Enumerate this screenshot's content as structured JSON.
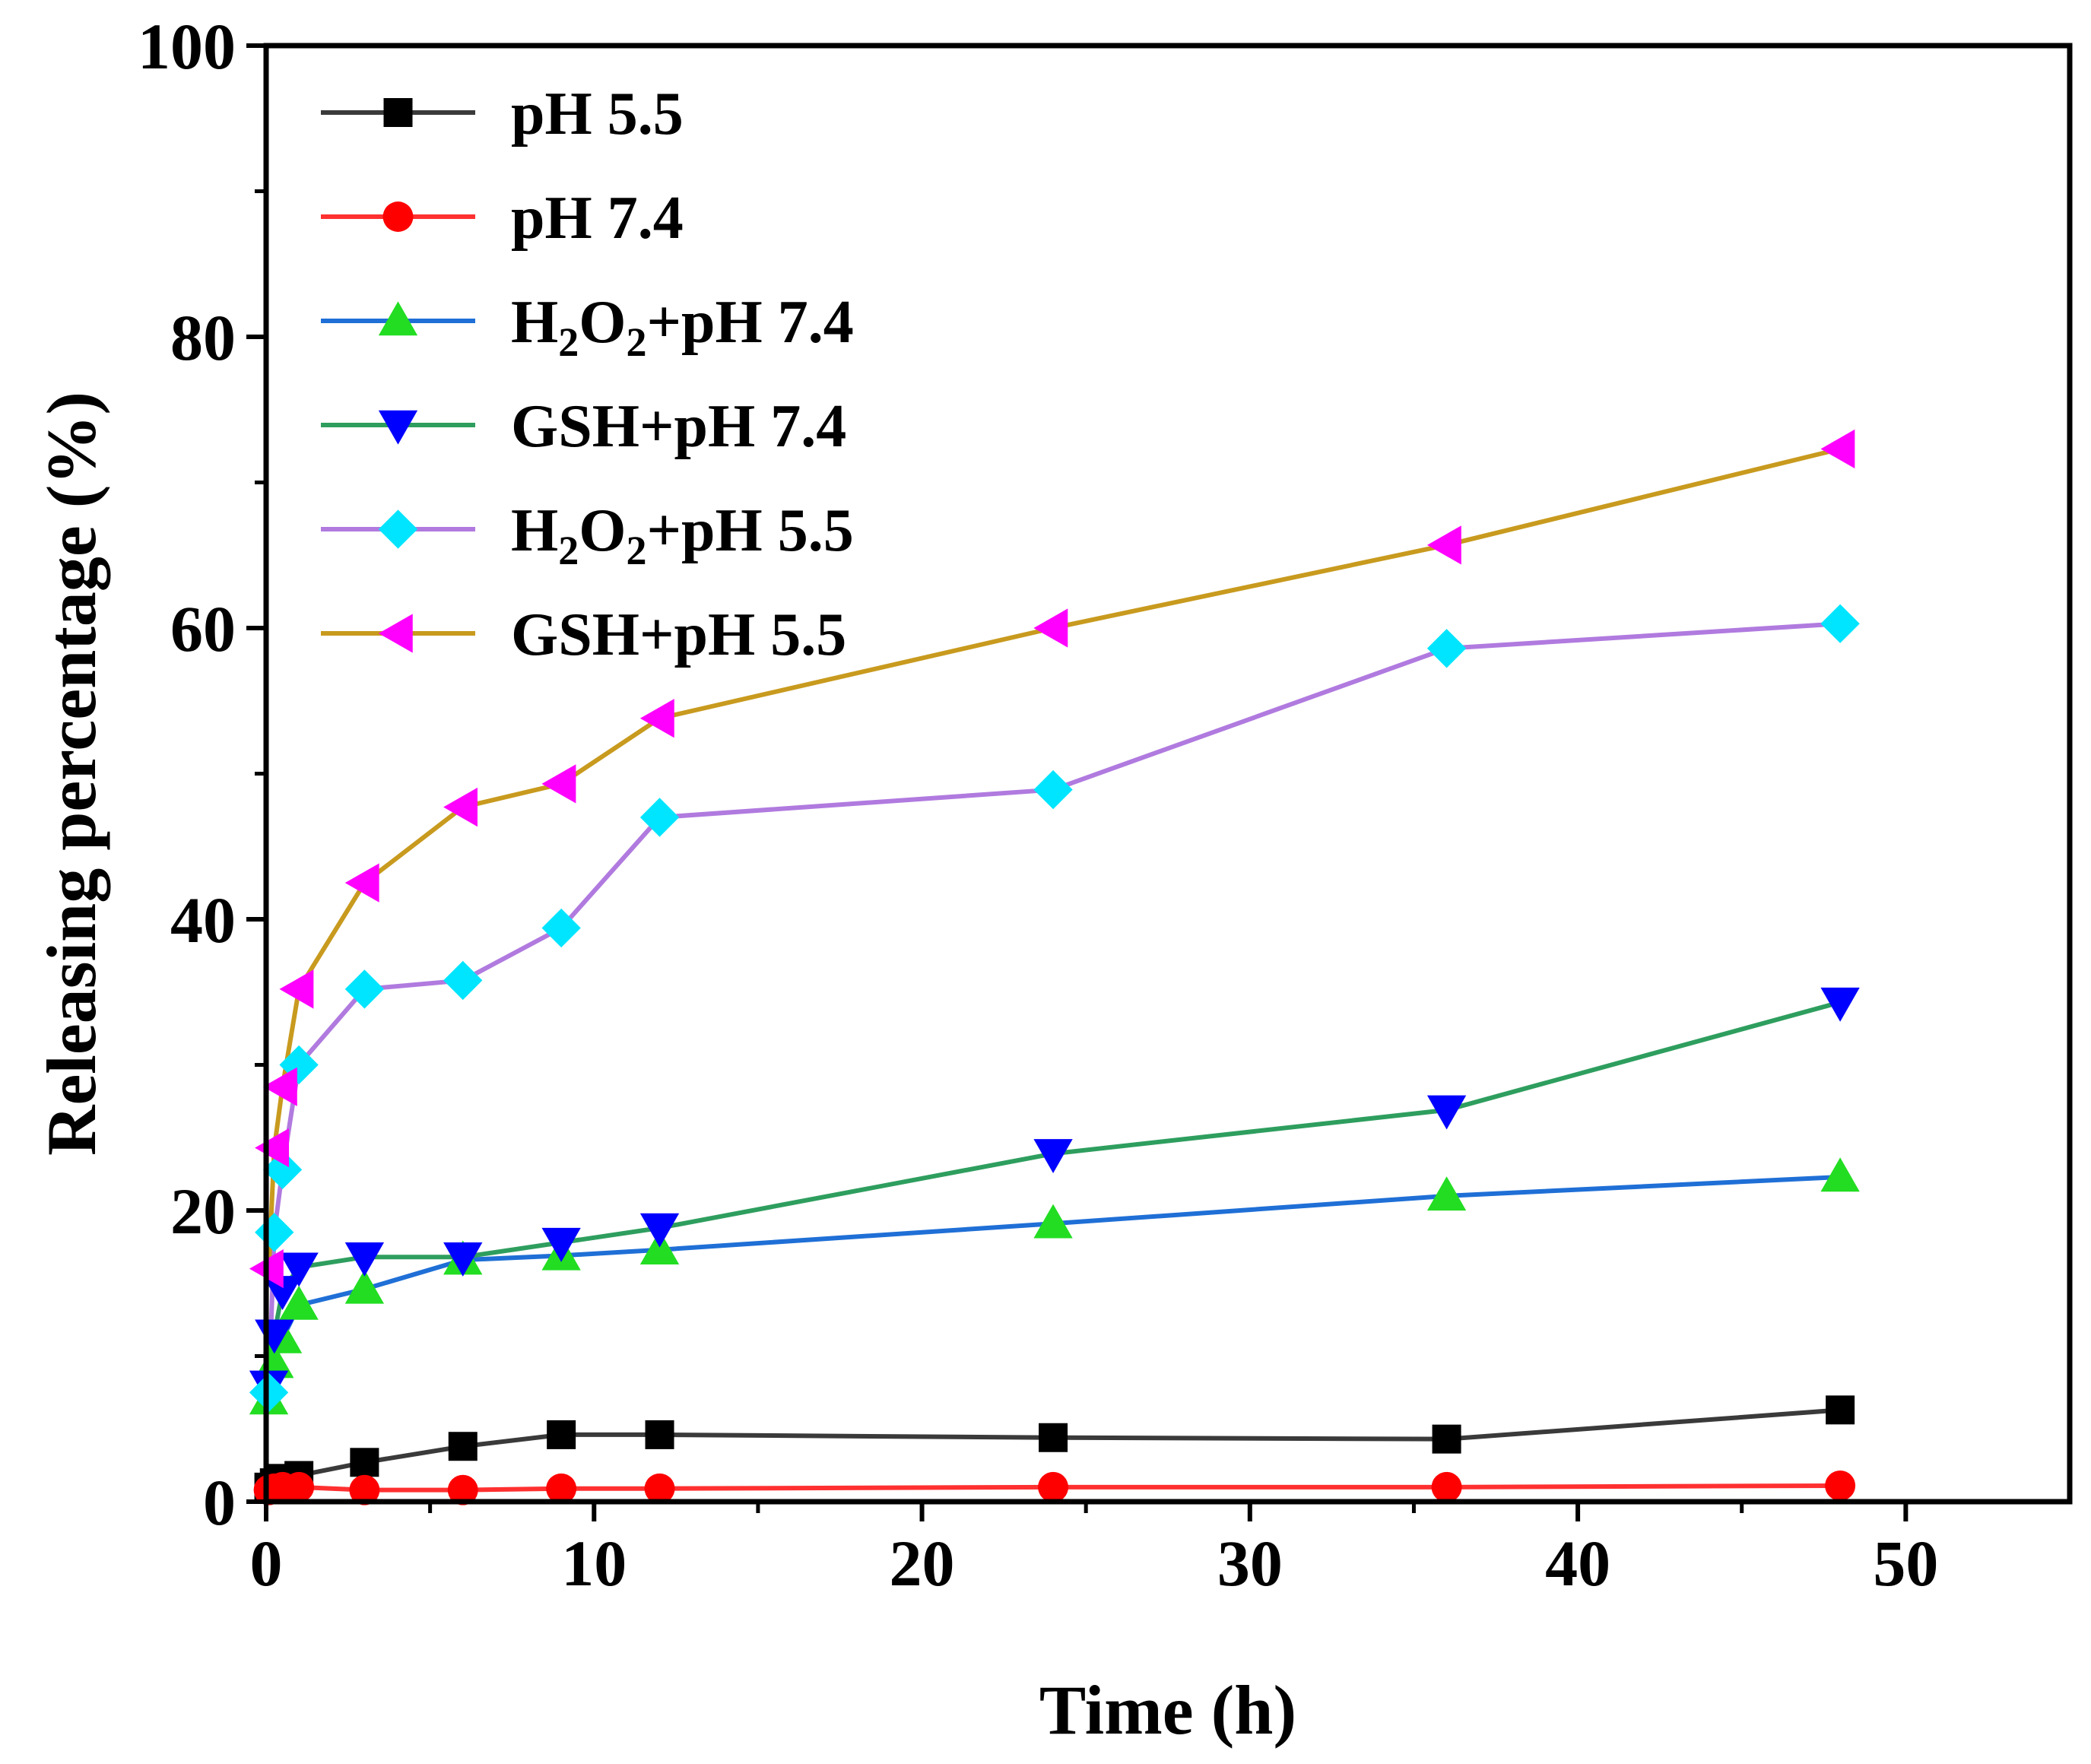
{
  "chart_data": {
    "type": "line",
    "title": "",
    "xlabel": "Time (h)",
    "ylabel": "Releasing percentage (%)",
    "xlim": [
      0,
      55
    ],
    "ylim": [
      0,
      100
    ],
    "xticks": [
      "0",
      "10",
      "20",
      "30",
      "40",
      "50"
    ],
    "yticks": [
      "0",
      "20",
      "40",
      "60",
      "80",
      "100"
    ],
    "x": [
      0.083,
      0.25,
      0.5,
      1,
      3,
      6,
      9,
      12,
      24,
      36,
      48
    ],
    "legend_position": "top-left",
    "series": [
      {
        "name": "pH 5.5",
        "color": "#000000",
        "line_color": "#3a3a3a",
        "marker": "square",
        "values": [
          1.0,
          1.3,
          1.6,
          1.8,
          2.7,
          3.8,
          4.6,
          4.6,
          4.4,
          4.3,
          6.3
        ]
      },
      {
        "name": "pH 7.4",
        "color": "#ff0000",
        "line_color": "#ff3030",
        "marker": "circle",
        "values": [
          0.8,
          0.9,
          1.0,
          1.0,
          0.8,
          0.8,
          0.9,
          0.9,
          1.0,
          1.0,
          1.1
        ]
      },
      {
        "name": "H2O2+pH 7.4",
        "name_base": "H",
        "name_sub1": "2",
        "name_mid": "O",
        "name_sub2": "2",
        "name_tail": "+pH 7.4",
        "color": "#22dd22",
        "line_color": "#1f6fd6",
        "marker": "triangle-up",
        "values": [
          7.0,
          9.5,
          11.2,
          13.5,
          14.6,
          16.6,
          16.9,
          17.3,
          19.1,
          21.0,
          22.3
        ]
      },
      {
        "name": "GSH+pH 7.4",
        "color": "#0000ff",
        "line_color": "#2e9e5e",
        "marker": "triangle-down",
        "values": [
          8.0,
          11.5,
          14.5,
          16.1,
          16.8,
          16.8,
          17.8,
          18.8,
          23.9,
          26.9,
          34.3
        ]
      },
      {
        "name": "H2O2+pH 5.5",
        "name_base": "H",
        "name_sub1": "2",
        "name_mid": "O",
        "name_sub2": "2",
        "name_tail": "+pH 5.5",
        "color": "#00e5ff",
        "line_color": "#b07adf",
        "marker": "diamond",
        "values": [
          7.5,
          18.5,
          22.8,
          30.0,
          35.2,
          35.8,
          39.4,
          47.0,
          48.9,
          58.6,
          60.3
        ]
      },
      {
        "name": "GSH+pH 5.5",
        "color": "#ff00ff",
        "line_color": "#c89a1e",
        "marker": "triangle-left",
        "values": [
          16.0,
          24.3,
          28.5,
          35.2,
          42.5,
          47.7,
          49.3,
          53.8,
          60.0,
          65.7,
          72.3
        ]
      }
    ]
  }
}
